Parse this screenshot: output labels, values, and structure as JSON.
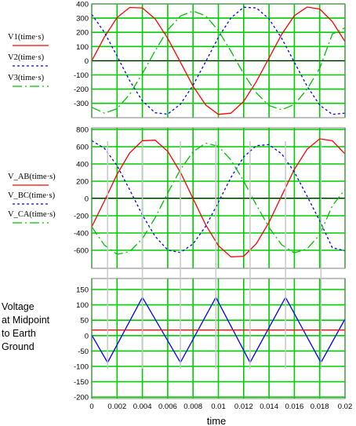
{
  "chart_data": [
    {
      "type": "line",
      "legend": [
        "V1(time·s)",
        "V2(time·s)",
        "V3(time·s)"
      ],
      "ylim": [
        -400,
        400
      ],
      "yticks": [
        "400",
        "300",
        "200",
        "100",
        "0",
        "-100",
        "-200",
        "-300"
      ],
      "xlim": [
        0,
        0.02
      ],
      "grid": true,
      "series": [
        {
          "name": "V1(time·s)",
          "color": "#ff0000",
          "style": "solid",
          "x": [
            0,
            0.001,
            0.002,
            0.003,
            0.004,
            0.005,
            0.006,
            0.007,
            0.008,
            0.009,
            0.01,
            0.011,
            0.012,
            0.013,
            0.014,
            0.015,
            0.016,
            0.017,
            0.018,
            0.019,
            0.02
          ],
          "y": [
            0,
            168,
            304,
            375,
            372,
            295,
            158,
            -10,
            -178,
            -311,
            -377,
            -368,
            -285,
            -147,
            20,
            187,
            317,
            378,
            364,
            276,
            135
          ]
        },
        {
          "name": "V2(time·s)",
          "color": "#0000ff",
          "style": "dashed",
          "x": [
            0,
            0.001,
            0.002,
            0.003,
            0.004,
            0.005,
            0.006,
            0.007,
            0.008,
            0.009,
            0.01,
            0.011,
            0.012,
            0.013,
            0.014,
            0.015,
            0.016,
            0.017,
            0.018,
            0.019,
            0.02
          ],
          "y": [
            327,
            200,
            33,
            -140,
            -282,
            -365,
            -375,
            -305,
            -172,
            -5,
            165,
            302,
            377,
            372,
            295,
            158,
            -10,
            -178,
            -311,
            -377,
            -368
          ]
        },
        {
          "name": "V3(time·s)",
          "color": "#00c000",
          "style": "dashdot",
          "x": [
            0,
            0.001,
            0.002,
            0.003,
            0.004,
            0.005,
            0.006,
            0.007,
            0.008,
            0.009,
            0.01,
            0.011,
            0.012,
            0.013,
            0.014,
            0.015,
            0.016,
            0.017,
            0.018,
            0.019,
            0.02
          ],
          "y": [
            -327,
            -368,
            -337,
            -235,
            -90,
            70,
            217,
            315,
            350,
            316,
            212,
            66,
            -92,
            -225,
            -315,
            -345,
            -307,
            -200,
            -53,
            188,
            233
          ]
        }
      ]
    },
    {
      "type": "line",
      "legend": [
        "V_AB(time·s)",
        "V_BC(time·s)",
        "V_CA(time·s)"
      ],
      "ylim": [
        -800,
        800
      ],
      "yticks": [
        "800",
        "600",
        "400",
        "200",
        "0",
        "-200",
        "-400",
        "-600"
      ],
      "xlim": [
        0,
        0.02
      ],
      "grid": true,
      "series": [
        {
          "name": "V_AB(time·s)",
          "color": "#ff0000",
          "style": "solid",
          "x": [
            0,
            0.001,
            0.002,
            0.003,
            0.004,
            0.005,
            0.006,
            0.007,
            0.008,
            0.009,
            0.01,
            0.011,
            0.012,
            0.013,
            0.014,
            0.015,
            0.016,
            0.017,
            0.018,
            0.019,
            0.02
          ],
          "y": [
            -327,
            -32,
            271,
            515,
            654,
            660,
            533,
            295,
            -6,
            -306,
            -542,
            -670,
            -662,
            -519,
            -275,
            29,
            327,
            556,
            675,
            653,
            503
          ]
        },
        {
          "name": "V_BC(time·s)",
          "color": "#0000ff",
          "style": "dashed",
          "x": [
            0,
            0.001,
            0.002,
            0.003,
            0.004,
            0.005,
            0.006,
            0.007,
            0.008,
            0.009,
            0.01,
            0.011,
            0.012,
            0.013,
            0.014,
            0.015,
            0.016,
            0.017,
            0.018,
            0.019,
            0.02
          ],
          "y": [
            654,
            568,
            370,
            95,
            -192,
            -435,
            -592,
            -620,
            -522,
            -321,
            -47,
            236,
            469,
            597,
            610,
            503,
            297,
            22,
            -258,
            -565,
            -601
          ]
        },
        {
          "name": "V_CA(time·s)",
          "color": "#00c000",
          "style": "dashdot",
          "x": [
            0,
            0.001,
            0.002,
            0.003,
            0.004,
            0.005,
            0.006,
            0.007,
            0.008,
            0.009,
            0.01,
            0.011,
            0.012,
            0.013,
            0.014,
            0.015,
            0.016,
            0.017,
            0.018,
            0.019,
            0.02
          ],
          "y": [
            -327,
            -536,
            -641,
            -610,
            -462,
            -225,
            59,
            325,
            528,
            627,
            589,
            434,
            193,
            -78,
            -335,
            -532,
            -624,
            -578,
            -417,
            -88,
            98
          ]
        }
      ]
    },
    {
      "type": "line",
      "side_label": [
        "Voltage",
        "at Midpoint",
        "to Earth",
        "Ground"
      ],
      "ylim": [
        -200,
        150
      ],
      "yticks": [
        "150",
        "100",
        "50",
        "0",
        "-50",
        "-100",
        "-150",
        "-200"
      ],
      "xlim": [
        0,
        0.02
      ],
      "xticks": [
        "0",
        "0.002",
        "0.004",
        "0.006",
        "0.008",
        "0.01",
        "0.012",
        "0.014",
        "0.016",
        "0.018",
        "0.02"
      ],
      "xlabel": "time",
      "grid": true,
      "series": [
        {
          "name": "",
          "color": "#0000ff",
          "style": "solid",
          "x": [
            0,
            0.00125,
            0.004,
            0.007,
            0.0098,
            0.0125,
            0.0153,
            0.0181,
            0.02
          ],
          "y": [
            -15,
            -95,
            95,
            -95,
            95,
            -95,
            95,
            -95,
            32
          ]
        },
        {
          "name": "",
          "color": "#ff0000",
          "style": "solid",
          "x": [
            0,
            0.02
          ],
          "y": [
            0,
            0
          ]
        }
      ]
    }
  ]
}
